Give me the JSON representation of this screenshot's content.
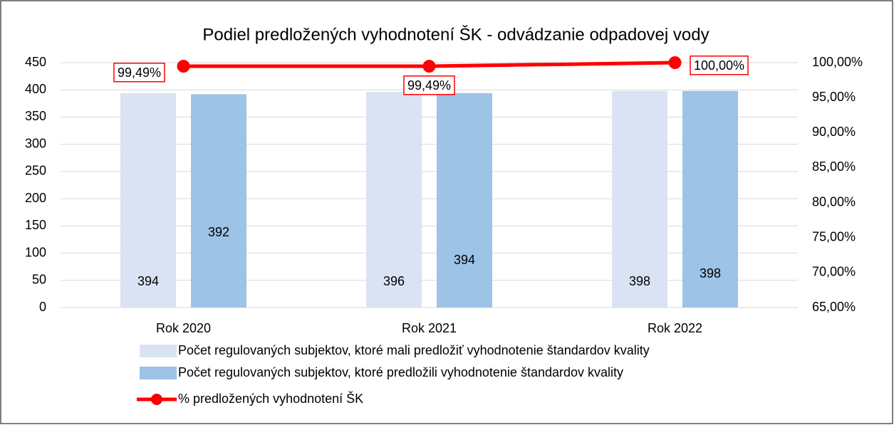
{
  "chart_data": {
    "type": "bar",
    "title": "Podiel predložených vyhodnotení ŠK - odvádzanie odpadovej vody",
    "categories": [
      "Rok 2020",
      "Rok 2021",
      "Rok 2022"
    ],
    "series": [
      {
        "name": "Počet regulovaných subjektov, ktoré mali predložiť vyhodnotenie štandardov kvality",
        "color": "#dae3f3",
        "values": [
          394,
          396,
          398
        ]
      },
      {
        "name": "Počet regulovaných subjektov, ktoré predložili vyhodnotenie štandardov kvality",
        "color": "#9dc3e6",
        "values": [
          392,
          394,
          398
        ]
      },
      {
        "name": "% predložených vyhodnotení ŠK",
        "color": "#ff0000",
        "type": "line",
        "axis": "y2",
        "values": [
          99.49,
          99.49,
          100
        ],
        "value_labels": [
          "99,49%",
          "99,49%",
          "100,00%"
        ]
      }
    ],
    "ylim": [
      0,
      450
    ],
    "yticks": [
      0,
      50,
      100,
      150,
      200,
      250,
      300,
      350,
      400,
      450
    ],
    "y2lim": [
      65,
      100
    ],
    "y2ticks": [
      {
        "value": 65,
        "label": "65,00%"
      },
      {
        "value": 70,
        "label": "70,00%"
      },
      {
        "value": 75,
        "label": "75,00%"
      },
      {
        "value": 80,
        "label": "80,00%"
      },
      {
        "value": 85,
        "label": "85,00%"
      },
      {
        "value": 90,
        "label": "90,00%"
      },
      {
        "value": 95,
        "label": "95,00%"
      },
      {
        "value": 100,
        "label": "100,00%"
      }
    ],
    "grid": true,
    "legend": "bottom"
  }
}
